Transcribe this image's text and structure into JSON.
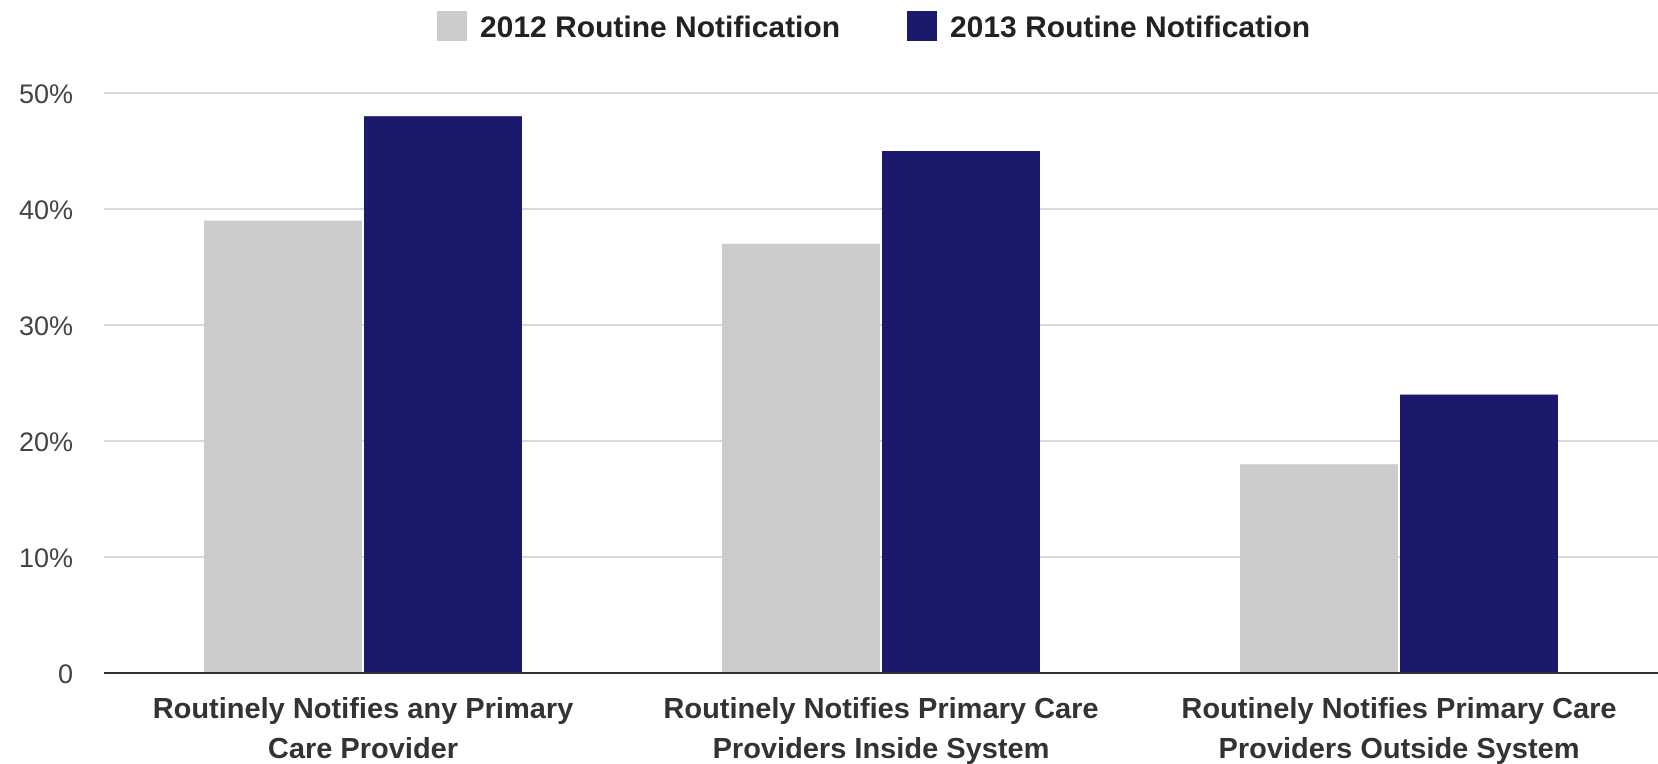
{
  "chart_data": {
    "type": "bar",
    "title": "",
    "xlabel": "",
    "ylabel": "",
    "categories": [
      [
        "Routinely Notifies any Primary",
        "Care Provider"
      ],
      [
        "Routinely Notifies Primary Care",
        "Providers Inside System"
      ],
      [
        "Routinely Notifies Primary Care",
        "Providers Outside System"
      ]
    ],
    "series": [
      {
        "name": "2012 Routine Notification",
        "color": "#cccccc",
        "values": [
          39,
          37,
          18
        ]
      },
      {
        "name": "2013 Routine Notification",
        "color": "#1a196b",
        "values": [
          48,
          45,
          24
        ]
      }
    ],
    "ylim": [
      0,
      50
    ],
    "y_ticks": [
      {
        "value": 0,
        "label": "0"
      },
      {
        "value": 10,
        "label": "10%"
      },
      {
        "value": 20,
        "label": "20%"
      },
      {
        "value": 30,
        "label": "30%"
      },
      {
        "value": 40,
        "label": "40%"
      },
      {
        "value": 50,
        "label": "50%"
      }
    ],
    "unit": "%",
    "grid": true,
    "legend_position": "top-center"
  }
}
